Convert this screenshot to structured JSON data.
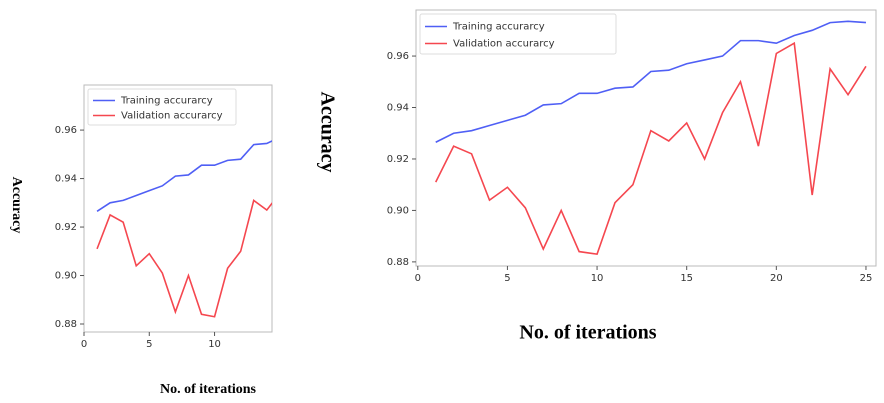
{
  "chart_data": [
    {
      "type": "line",
      "xlabel": "No. of iterations",
      "ylabel": "Accuracy",
      "x": [
        1,
        2,
        3,
        4,
        5,
        6,
        7,
        8,
        9,
        10,
        11,
        12,
        13,
        14,
        15
      ],
      "series": [
        {
          "name": "Training accurarcy",
          "color": "#4f5ff5",
          "values": [
            0.9265,
            0.93,
            0.931,
            0.933,
            0.935,
            0.937,
            0.941,
            0.9415,
            0.9455,
            0.9455,
            0.9475,
            0.948,
            0.954,
            0.9545,
            0.957
          ]
        },
        {
          "name": "Validation accurarcy",
          "color": "#f5474f",
          "values": [
            0.911,
            0.925,
            0.922,
            0.904,
            0.909,
            0.901,
            0.885,
            0.9,
            0.884,
            0.883,
            0.903,
            0.91,
            0.931,
            0.927,
            0.934
          ]
        }
      ],
      "xlim": [
        0,
        14.4
      ],
      "ylim": [
        0.8767,
        0.9786
      ],
      "xticks": [
        0,
        5,
        10
      ],
      "yticks": [
        0.88,
        {
          "value": 0.9,
          "label": "0.90"
        },
        0.92,
        0.94,
        0.96
      ],
      "legend": "upper-left"
    },
    {
      "type": "line",
      "xlabel": "No. of iterations",
      "ylabel": "Accuracy",
      "x": [
        1,
        2,
        3,
        4,
        5,
        6,
        7,
        8,
        9,
        10,
        11,
        12,
        13,
        14,
        15,
        16,
        17,
        18,
        19,
        20,
        21,
        22,
        23,
        24,
        25
      ],
      "series": [
        {
          "name": "Training accurarcy",
          "color": "#4f5ff5",
          "values": [
            0.9265,
            0.93,
            0.931,
            0.933,
            0.935,
            0.937,
            0.941,
            0.9415,
            0.9455,
            0.9455,
            0.9475,
            0.948,
            0.954,
            0.9545,
            0.957,
            0.9585,
            0.96,
            0.966,
            0.966,
            0.965,
            0.968,
            0.97,
            0.973,
            0.9735,
            0.973
          ]
        },
        {
          "name": "Validation accurarcy",
          "color": "#f5474f",
          "values": [
            0.911,
            0.925,
            0.922,
            0.904,
            0.909,
            0.901,
            0.885,
            0.9,
            0.884,
            0.883,
            0.903,
            0.91,
            0.931,
            0.927,
            0.934,
            0.92,
            0.938,
            0.95,
            0.925,
            0.961,
            0.965,
            0.906,
            0.955,
            0.945,
            0.956
          ]
        }
      ],
      "xlim": [
        -0.1,
        25.56
      ],
      "ylim": [
        0.8784,
        0.9779
      ],
      "xticks": [
        0,
        5,
        10,
        15,
        20,
        25
      ],
      "yticks": [
        0.88,
        {
          "value": 0.9,
          "label": "0.90"
        },
        0.92,
        0.94,
        0.96
      ],
      "legend": "upper-left"
    }
  ]
}
